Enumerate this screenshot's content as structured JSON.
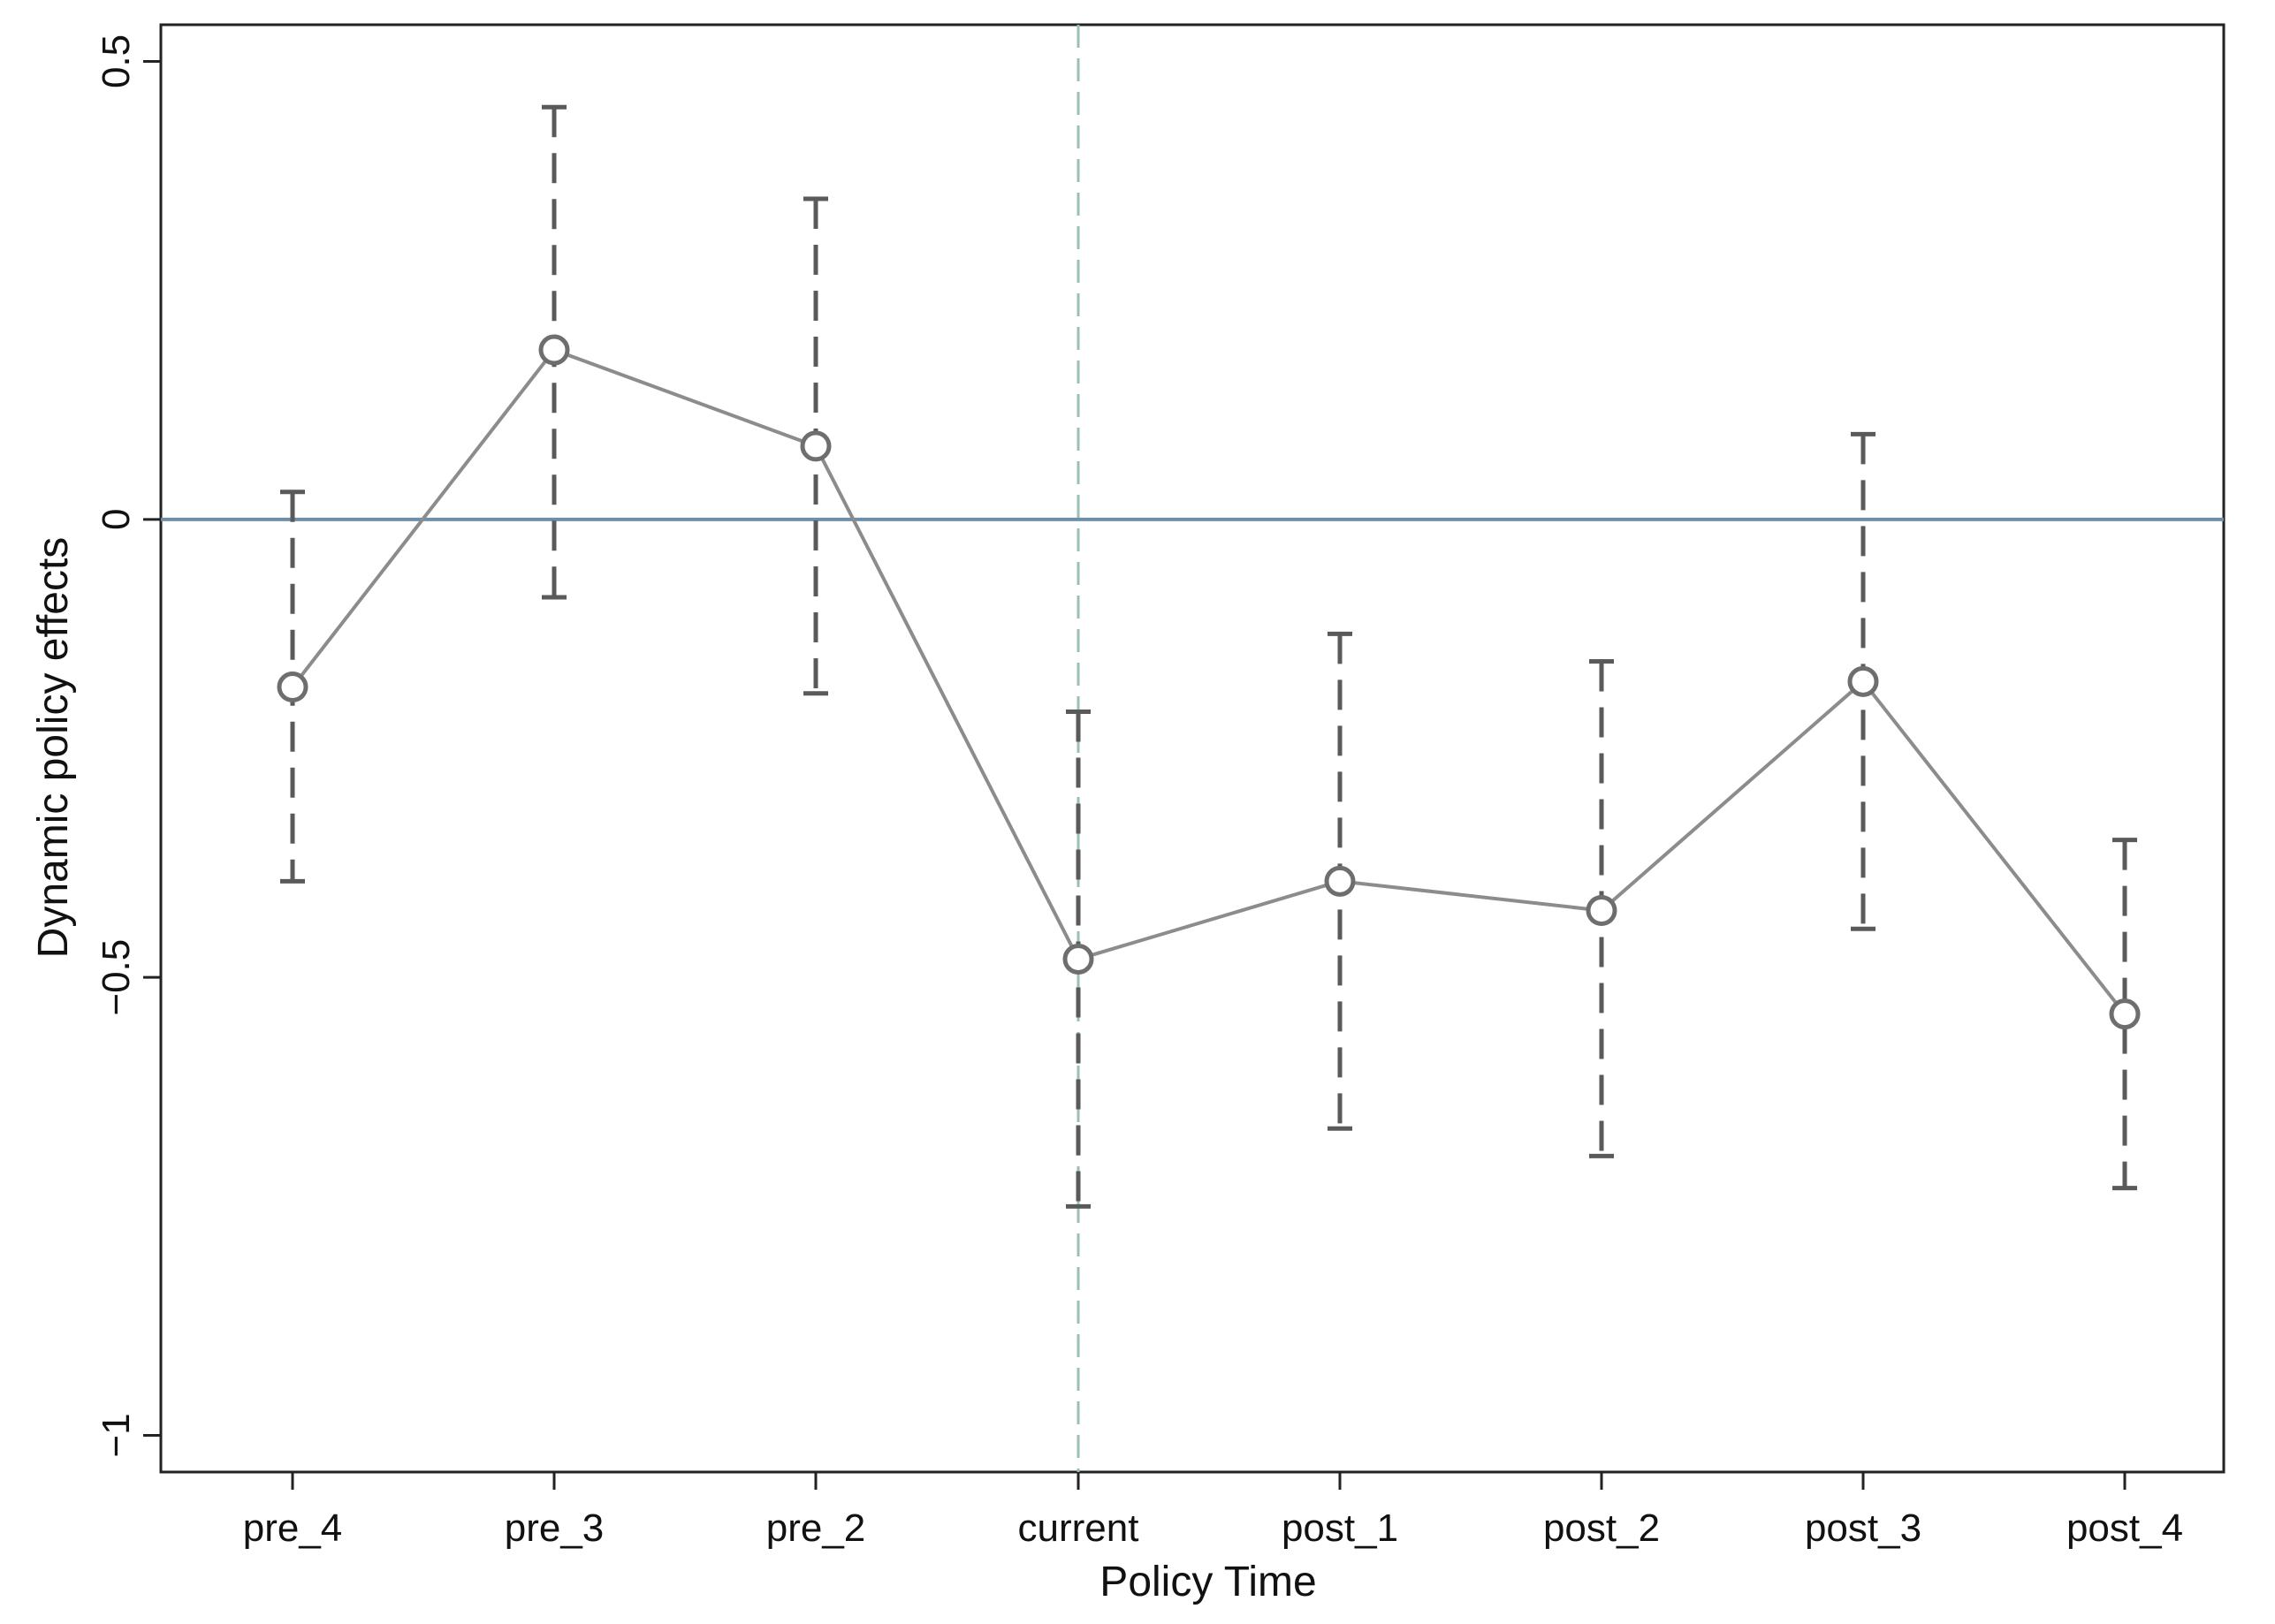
{
  "chart_data": {
    "type": "line",
    "title": "",
    "xlabel": "Policy Time",
    "ylabel": "Dynamic policy effects",
    "categories": [
      "pre_4",
      "pre_3",
      "pre_2",
      "current",
      "post_1",
      "post_2",
      "post_3",
      "post_4"
    ],
    "yticks": [
      {
        "value": 0.5,
        "label": "0.5"
      },
      {
        "value": 0,
        "label": "0"
      },
      {
        "value": -0.5,
        "label": "−0.5"
      },
      {
        "value": -1,
        "label": "−1"
      }
    ],
    "ylim": [
      -1.04,
      0.54
    ],
    "series": [
      {
        "values": [
          -0.183,
          0.185,
          0.08,
          -0.48,
          -0.395,
          -0.427,
          -0.177,
          -0.54
        ],
        "ci_lower": [
          -0.395,
          -0.085,
          -0.19,
          -0.75,
          -0.665,
          -0.695,
          -0.447,
          -0.73
        ],
        "ci_upper": [
          0.03,
          0.45,
          0.35,
          -0.21,
          -0.125,
          -0.155,
          0.093,
          -0.35
        ]
      }
    ],
    "reference_lines": {
      "horizontal_y": 0,
      "vertical_category": "current"
    },
    "grid": false,
    "legend": "none",
    "colors": {
      "line": "#8c8c8c",
      "marker": "#6e6e6e",
      "error_bar": "#5a5a5a",
      "zero_line": "#6f8fa8",
      "vline": "#9bbfb4",
      "axis": "#222222"
    }
  }
}
